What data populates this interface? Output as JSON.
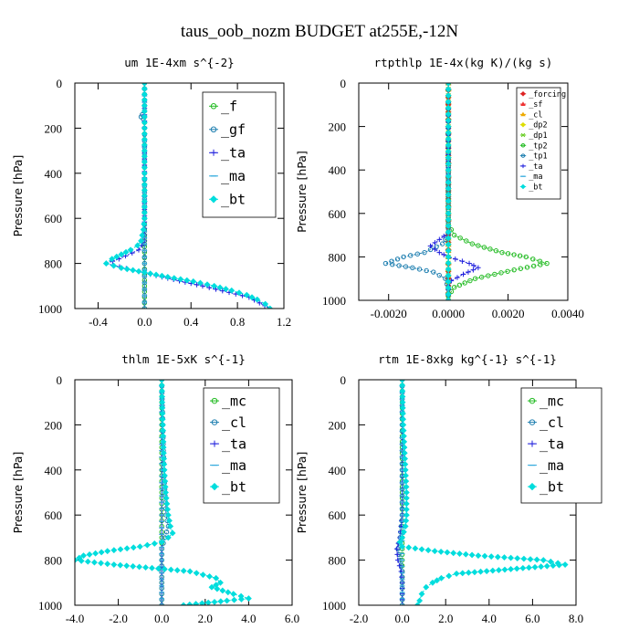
{
  "figure": {
    "title": "taus_oob_nozm  BUDGET at255E,-12N"
  },
  "chart_data": [
    {
      "type": "line",
      "title": "um  1E-4xm s^{-2}",
      "ylabel": "Pressure [hPa]",
      "xlim": [
        -0.6,
        1.2
      ],
      "ylim": [
        1000,
        0
      ],
      "xticks": [
        "-0.4",
        "0.0",
        "0.4",
        "0.8",
        "1.2"
      ],
      "xtick_values": [
        -0.4,
        0.0,
        0.4,
        0.8,
        1.2
      ],
      "yticks": [
        "0",
        "200",
        "400",
        "600",
        "800",
        "1000"
      ],
      "ytick_values": [
        0,
        200,
        400,
        600,
        800,
        1000
      ],
      "legend_position": "top-right",
      "series": [
        {
          "name": "_f",
          "color": "#22bb22",
          "marker": "circle",
          "y": [
            0,
            50,
            100,
            150,
            200,
            300,
            400,
            500,
            600,
            700,
            750,
            800,
            850,
            900,
            950,
            1000
          ],
          "x": [
            0,
            0,
            0,
            0,
            0,
            0,
            0,
            0,
            0,
            0,
            0,
            0,
            0,
            0,
            0,
            0
          ]
        },
        {
          "name": "_gf",
          "color": "#1f7fb0",
          "marker": "circle",
          "y": [
            0,
            100,
            140,
            150,
            160,
            200,
            400,
            600,
            800,
            1000
          ],
          "x": [
            0,
            0,
            -0.02,
            -0.03,
            -0.01,
            0,
            0,
            0,
            0,
            0
          ]
        },
        {
          "name": "_ta",
          "color": "#2222dd",
          "marker": "plus",
          "y": [
            0,
            700,
            740,
            780,
            800,
            830,
            860,
            900,
            950,
            1000
          ],
          "x": [
            0,
            0,
            -0.05,
            -0.22,
            -0.33,
            -0.1,
            0.15,
            0.5,
            0.9,
            1.08
          ]
        },
        {
          "name": "_ma",
          "color": "#33aadd",
          "marker": "dash",
          "y": [
            0,
            200,
            400,
            600,
            800,
            1000
          ],
          "x": [
            0,
            0,
            0,
            0,
            0,
            0
          ]
        },
        {
          "name": "_bt",
          "color": "#00dddd",
          "marker": "diamond",
          "y": [
            0,
            100,
            200,
            300,
            400,
            500,
            600,
            650,
            700,
            720,
            740,
            760,
            780,
            800,
            820,
            840,
            860,
            880,
            900,
            920,
            940,
            960,
            980,
            1000
          ],
          "x": [
            0,
            0,
            0,
            0,
            0,
            0,
            0,
            -0.01,
            -0.03,
            -0.06,
            -0.12,
            -0.2,
            -0.28,
            -0.33,
            -0.2,
            0,
            0.2,
            0.42,
            0.6,
            0.75,
            0.88,
            0.97,
            1.04,
            1.08
          ]
        }
      ]
    },
    {
      "type": "line",
      "title": "rtpthlp  1E-4x(kg K)/(kg s)",
      "ylabel": "Pressure [hPa]",
      "xlim": [
        -0.003,
        0.004
      ],
      "ylim": [
        1000,
        0
      ],
      "xticks": [
        "-0.0020",
        "0.0000",
        "0.0020",
        "0.0040"
      ],
      "xtick_values": [
        -0.002,
        0.0,
        0.002,
        0.004
      ],
      "yticks": [
        "0",
        "200",
        "400",
        "600",
        "800",
        "1000"
      ],
      "ytick_values": [
        0,
        200,
        400,
        600,
        800,
        1000
      ],
      "legend_position": "top-right",
      "series": [
        {
          "name": "_forcing",
          "color": "#dd2222",
          "marker": "diamond",
          "y": [
            0,
            100,
            200,
            300,
            400,
            500,
            600,
            700,
            800,
            900,
            1000
          ],
          "x": [
            0,
            0,
            0,
            0,
            0,
            0,
            0,
            0,
            0,
            0,
            0
          ]
        },
        {
          "name": "_sf",
          "color": "#ee3333",
          "marker": "triangle",
          "y": [
            0,
            200,
            400,
            600,
            800,
            1000
          ],
          "x": [
            0,
            0,
            0,
            0,
            0,
            0
          ]
        },
        {
          "name": "_cl",
          "color": "#eeaa00",
          "marker": "triangle",
          "y": [
            0,
            200,
            400,
            600,
            800,
            1000
          ],
          "x": [
            0,
            0,
            0,
            0,
            0,
            0
          ]
        },
        {
          "name": "_dp2",
          "color": "#dddd00",
          "marker": "diamond",
          "y": [
            0,
            200,
            400,
            600,
            800,
            1000
          ],
          "x": [
            0,
            0,
            0,
            0,
            0,
            0
          ]
        },
        {
          "name": "_dp1",
          "color": "#66cc22",
          "marker": "star",
          "y": [
            0,
            200,
            400,
            600,
            800,
            1000
          ],
          "x": [
            0,
            0,
            0,
            0,
            0,
            0
          ]
        },
        {
          "name": "_tp2",
          "color": "#22bb22",
          "marker": "circle",
          "y": [
            0,
            650,
            700,
            740,
            780,
            800,
            830,
            860,
            900,
            940,
            980,
            1000
          ],
          "x": [
            0,
            0,
            0.0002,
            0.0008,
            0.0018,
            0.0026,
            0.0033,
            0.0022,
            0.0009,
            0.0002,
            0,
            0
          ]
        },
        {
          "name": "_tp1",
          "color": "#1f7fb0",
          "marker": "circle",
          "y": [
            0,
            700,
            740,
            780,
            800,
            830,
            850,
            870,
            900,
            950,
            1000
          ],
          "x": [
            0,
            0,
            -0.0002,
            -0.0008,
            -0.0015,
            -0.0021,
            -0.0012,
            -0.0005,
            -0.0001,
            0,
            0
          ]
        },
        {
          "name": "_ta",
          "color": "#2222dd",
          "marker": "plus",
          "y": [
            0,
            690,
            720,
            750,
            780,
            800,
            830,
            850,
            880,
            910,
            950,
            1000
          ],
          "x": [
            0,
            0,
            -0.0003,
            -0.0006,
            -0.0003,
            0,
            0.0007,
            0.001,
            0.0005,
            0.0001,
            0,
            0
          ]
        },
        {
          "name": "_ma",
          "color": "#33aadd",
          "marker": "dash",
          "y": [
            0,
            200,
            400,
            600,
            800,
            1000
          ],
          "x": [
            0,
            0,
            0,
            0,
            0,
            0
          ]
        },
        {
          "name": "_bt",
          "color": "#00dddd",
          "marker": "diamond",
          "y": [
            0,
            200,
            400,
            600,
            800,
            1000
          ],
          "x": [
            0,
            0,
            0,
            0,
            0,
            0
          ]
        }
      ]
    },
    {
      "type": "line",
      "title": "thlm  1E-5xK s^{-1}",
      "ylabel": "Pressure [hPa]",
      "xlim": [
        -4.0,
        6.0
      ],
      "ylim": [
        1000,
        0
      ],
      "xticks": [
        "-4.0",
        "-2.0",
        "0.0",
        "2.0",
        "4.0",
        "6.0"
      ],
      "xtick_values": [
        -4.0,
        -2.0,
        0.0,
        2.0,
        4.0,
        6.0
      ],
      "yticks": [
        "0",
        "200",
        "400",
        "600",
        "800",
        "1000"
      ],
      "ytick_values": [
        0,
        200,
        400,
        600,
        800,
        1000
      ],
      "legend_position": "top-right",
      "series": [
        {
          "name": "_mc",
          "color": "#22bb22",
          "marker": "circle",
          "y": [
            0,
            50,
            100,
            150,
            200,
            250,
            300,
            350,
            400,
            450,
            500,
            550,
            600,
            650,
            700,
            750,
            800,
            850,
            900,
            950,
            1000
          ],
          "x": [
            0,
            0,
            0,
            0,
            0,
            0,
            0,
            0,
            0,
            0,
            0,
            0,
            0,
            0,
            0,
            0,
            0,
            0,
            0,
            0,
            0
          ]
        },
        {
          "name": "_cl",
          "color": "#1f7fb0",
          "marker": "circle",
          "y": [
            0,
            200,
            400,
            600,
            650,
            700,
            750,
            800,
            850,
            900,
            1000
          ],
          "x": [
            0,
            0.05,
            0.1,
            0.2,
            0.3,
            0.15,
            0,
            0,
            0,
            0,
            0
          ]
        },
        {
          "name": "_ta",
          "color": "#2222dd",
          "marker": "plus",
          "y": [
            0,
            200,
            400,
            600,
            800,
            1000
          ],
          "x": [
            0,
            0,
            0,
            0,
            0,
            0
          ]
        },
        {
          "name": "_ma",
          "color": "#33aadd",
          "marker": "dash",
          "y": [
            0,
            200,
            400,
            600,
            800,
            1000
          ],
          "x": [
            0,
            0,
            0,
            0,
            0,
            0
          ]
        },
        {
          "name": "_bt",
          "color": "#00dddd",
          "marker": "diamond",
          "y": [
            0,
            100,
            200,
            300,
            400,
            500,
            600,
            650,
            680,
            700,
            720,
            740,
            760,
            780,
            800,
            820,
            850,
            880,
            900,
            920,
            950,
            970,
            980,
            1000
          ],
          "x": [
            0,
            0.02,
            0.05,
            0.08,
            0.12,
            0.18,
            0.3,
            0.4,
            0.5,
            0.3,
            0,
            -1,
            -2.5,
            -3.6,
            -4.0,
            -2.2,
            1.3,
            2.5,
            2.7,
            2.3,
            3.3,
            4.0,
            3.0,
            1.0
          ]
        }
      ]
    },
    {
      "type": "line",
      "title": "rtm  1E-8xkg kg^{-1} s^{-1}",
      "ylabel": "Pressure [hPa]",
      "xlim": [
        -2.0,
        8.0
      ],
      "ylim": [
        1000,
        0
      ],
      "xticks": [
        "-2.0",
        "0.0",
        "2.0",
        "4.0",
        "6.0",
        "8.0"
      ],
      "xtick_values": [
        -2.0,
        0.0,
        2.0,
        4.0,
        6.0,
        8.0
      ],
      "yticks": [
        "0",
        "200",
        "400",
        "600",
        "800",
        "1000"
      ],
      "ytick_values": [
        0,
        200,
        400,
        600,
        800,
        1000
      ],
      "legend_position": "top-right",
      "series": [
        {
          "name": "_mc",
          "color": "#22bb22",
          "marker": "circle",
          "y": [
            0,
            50,
            100,
            150,
            200,
            250,
            300,
            350,
            400,
            450,
            500,
            550,
            600,
            650,
            700,
            750,
            800,
            850,
            900,
            950,
            1000
          ],
          "x": [
            0,
            0,
            0,
            0,
            0,
            0,
            0,
            0,
            0,
            0,
            0,
            0,
            0,
            0,
            0,
            0,
            0,
            0,
            0,
            0,
            0
          ]
        },
        {
          "name": "_cl",
          "color": "#1f7fb0",
          "marker": "circle",
          "y": [
            0,
            600,
            700,
            750,
            800,
            850,
            900,
            1000
          ],
          "x": [
            0,
            0,
            -0.1,
            -0.2,
            -0.1,
            0,
            0,
            0
          ]
        },
        {
          "name": "_ta",
          "color": "#2222dd",
          "marker": "plus",
          "y": [
            0,
            600,
            700,
            750,
            800,
            850,
            900,
            1000
          ],
          "x": [
            0,
            0,
            -0.1,
            -0.25,
            -0.2,
            -0.05,
            0,
            0
          ]
        },
        {
          "name": "_ma",
          "color": "#33aadd",
          "marker": "dash",
          "y": [
            0,
            200,
            400,
            600,
            800,
            1000
          ],
          "x": [
            0,
            0,
            0,
            0,
            0,
            0
          ]
        },
        {
          "name": "_bt",
          "color": "#00dddd",
          "marker": "diamond",
          "y": [
            0,
            100,
            200,
            300,
            400,
            500,
            600,
            650,
            700,
            720,
            740,
            760,
            780,
            800,
            820,
            840,
            860,
            880,
            900,
            920,
            950,
            980,
            1000
          ],
          "x": [
            0,
            0.02,
            0.05,
            0.1,
            0.15,
            0.2,
            0.2,
            0.15,
            0,
            -0.1,
            0,
            1.5,
            3.5,
            6.5,
            7.5,
            5,
            2.5,
            1.8,
            1.4,
            1.1,
            0.9,
            0.8,
            0.7
          ]
        }
      ]
    }
  ]
}
